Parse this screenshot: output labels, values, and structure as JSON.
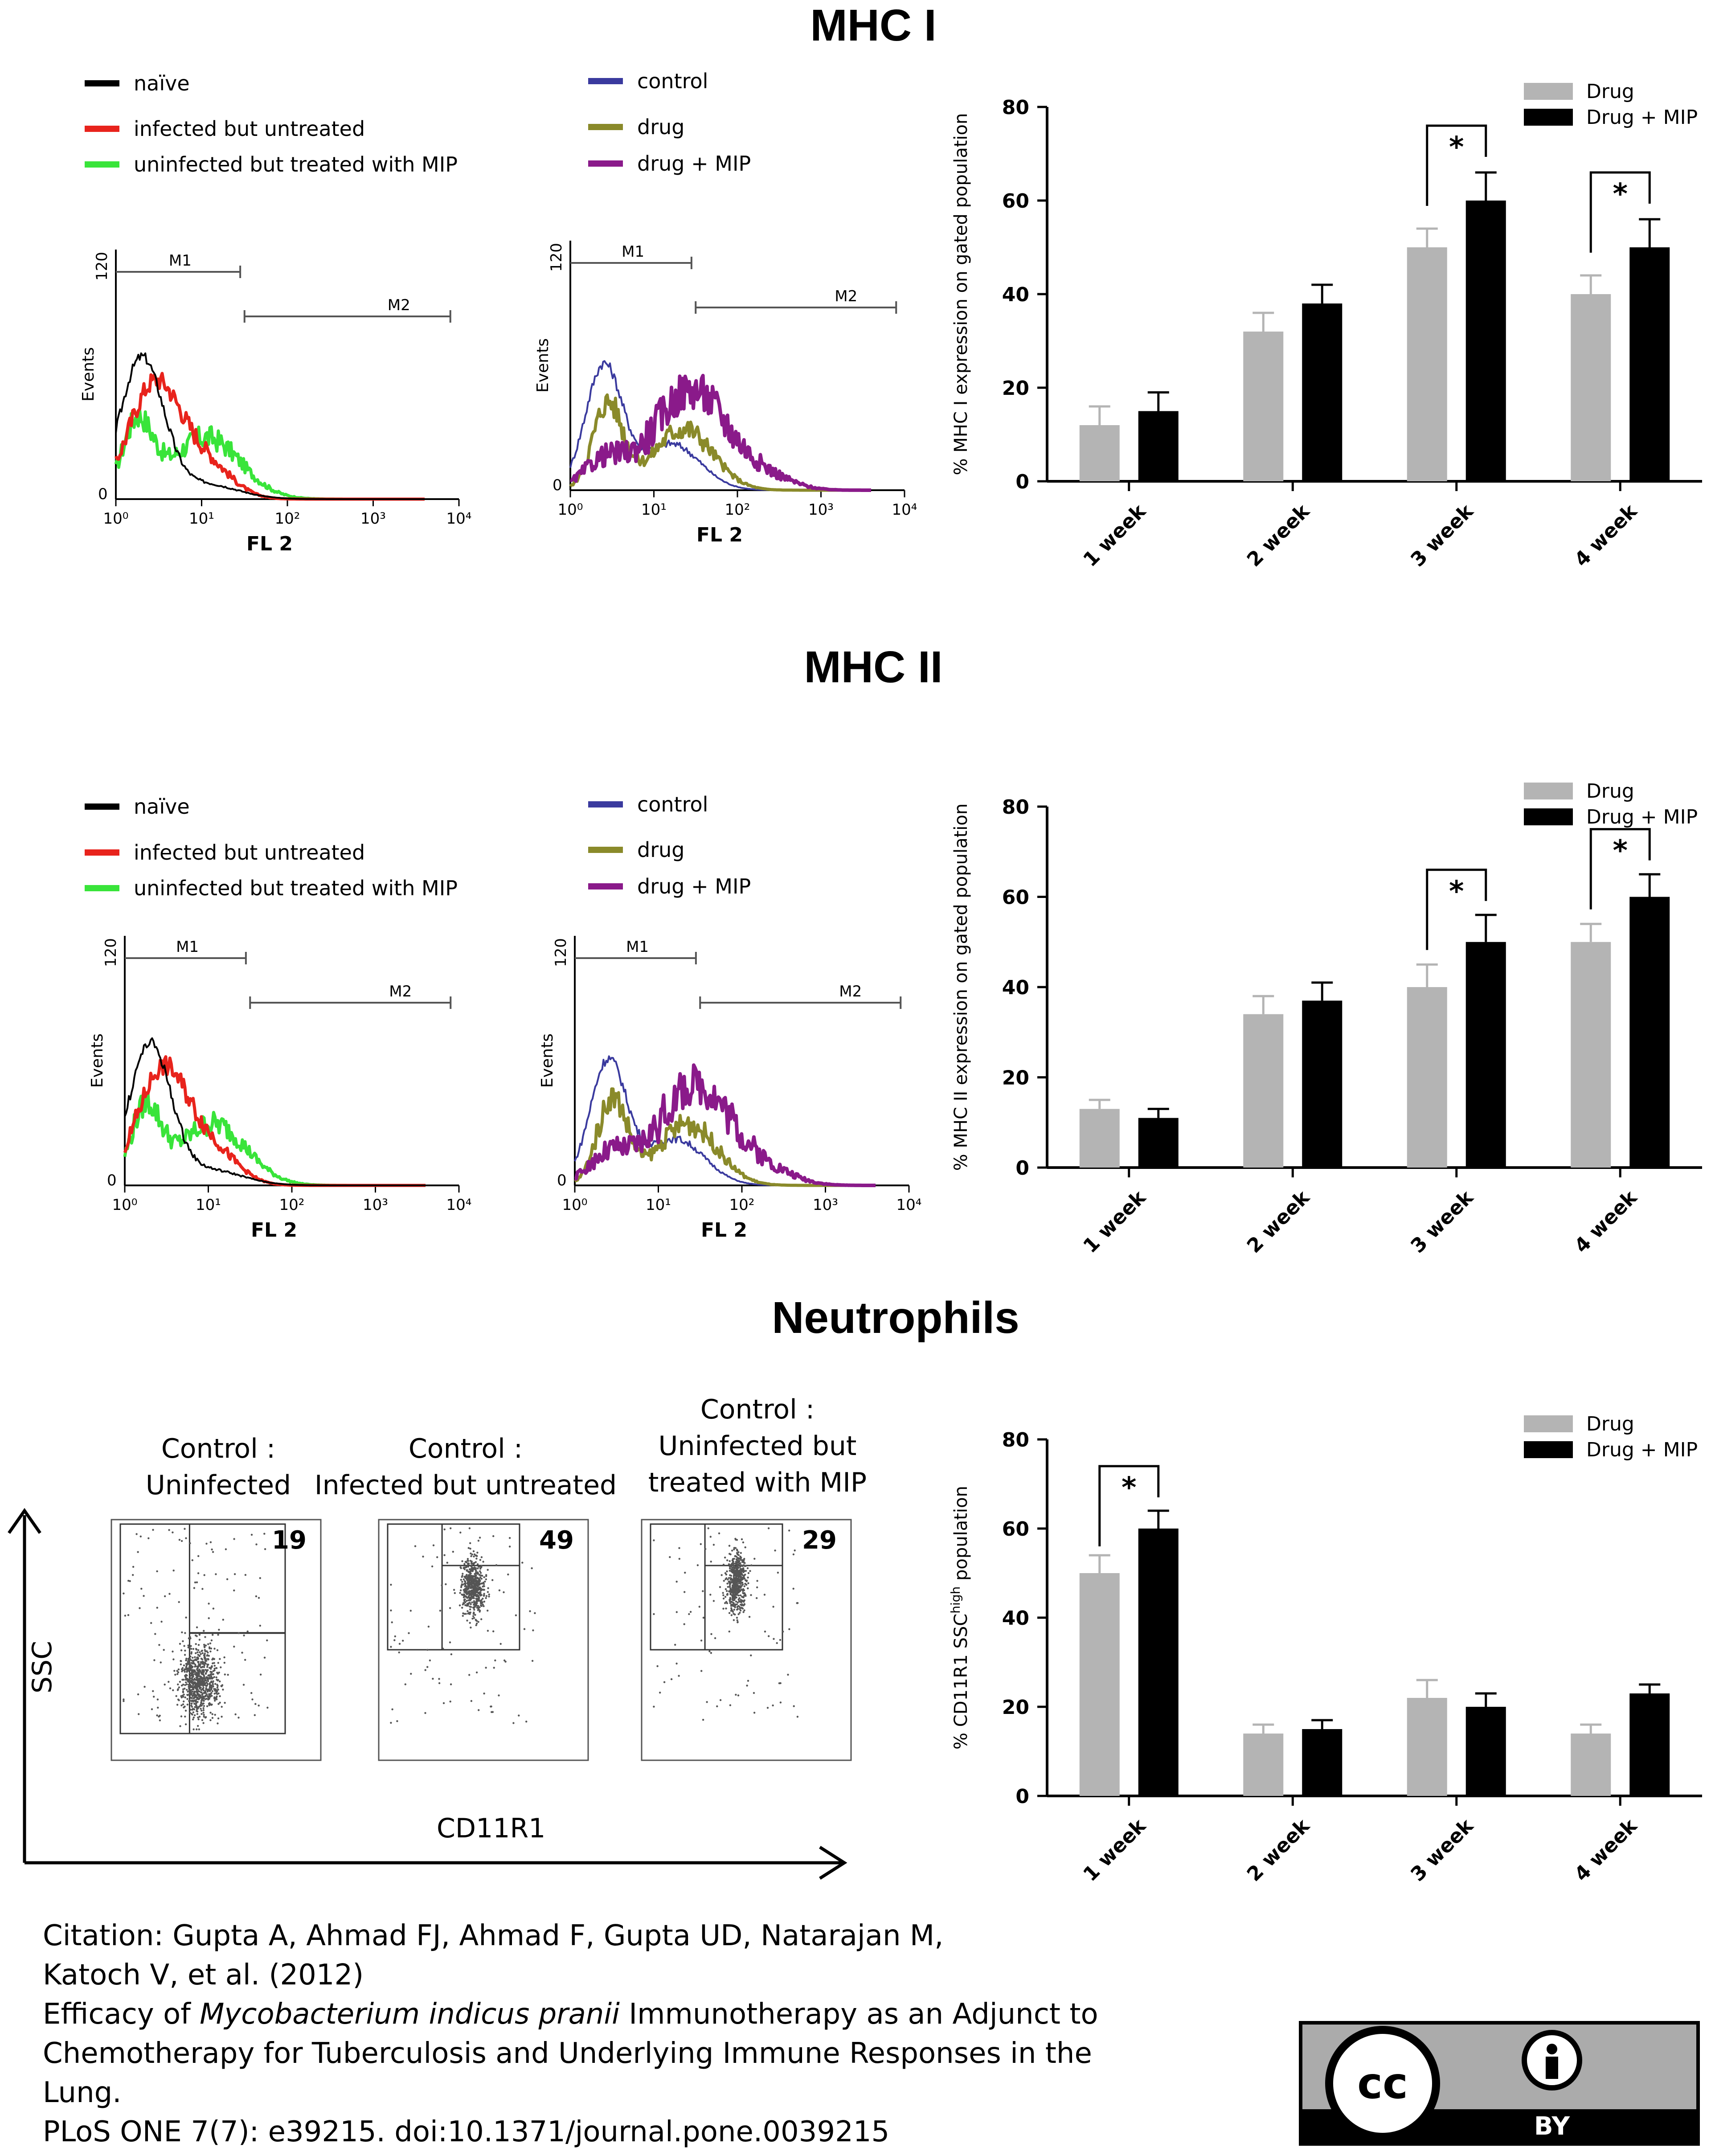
{
  "titles": {
    "mhc1": "MHC I",
    "mhc2": "MHC II",
    "neutrophils": "Neutrophils"
  },
  "legends": {
    "left": [
      {
        "label": "naïve",
        "color": "#000000"
      },
      {
        "label": "infected but untreated",
        "color": "#e8231c"
      },
      {
        "label": "uninfected but treated with MIP",
        "color": "#39e43a"
      }
    ],
    "right": [
      {
        "label": "control",
        "color": "#3a3a9e"
      },
      {
        "label": "drug",
        "color": "#8a8a2a"
      },
      {
        "label": "drug + MIP",
        "color": "#8a1a8a"
      }
    ]
  },
  "histogram_labels": {
    "ymax": "120",
    "ymin": "0",
    "ylabel": "Events",
    "xlabel": "FL 2",
    "ticks": [
      "10⁰",
      "10¹",
      "10²",
      "10³",
      "10⁴"
    ],
    "m1": "M1",
    "m2": "M2"
  },
  "neutrophil_panels": {
    "labels": [
      [
        "Control :",
        "Uninfected"
      ],
      [
        "Control :",
        "Infected but untreated"
      ],
      [
        "Control :",
        "Uninfected but",
        "treated  with MIP"
      ]
    ],
    "counts": [
      "19",
      "49",
      "29"
    ],
    "axis_y": "SSC",
    "axis_x": "CD11R1"
  },
  "chart_data": [
    {
      "type": "bar",
      "ylabel": "% MHC I expression on gated population",
      "categories": [
        "1 week",
        "2 week",
        "3 week",
        "4 week"
      ],
      "ylim": [
        0,
        80
      ],
      "yticks": [
        0,
        20,
        40,
        60,
        80
      ],
      "series": [
        {
          "name": "Drug",
          "color": "#b4b4b4",
          "values": [
            12,
            32,
            50,
            40
          ],
          "errors": [
            4,
            4,
            4,
            4
          ]
        },
        {
          "name": "Drug + MIP",
          "color": "#000000",
          "values": [
            15,
            38,
            60,
            50
          ],
          "errors": [
            4,
            4,
            6,
            6
          ]
        }
      ],
      "significance": [
        {
          "category": 2,
          "label": "*"
        },
        {
          "category": 3,
          "label": "*"
        }
      ],
      "legend": "top-right"
    },
    {
      "type": "bar",
      "ylabel": "% MHC II expression on gated population",
      "categories": [
        "1 week",
        "2 week",
        "3 week",
        "4 week"
      ],
      "ylim": [
        0,
        80
      ],
      "yticks": [
        0,
        20,
        40,
        60,
        80
      ],
      "series": [
        {
          "name": "Drug",
          "color": "#b4b4b4",
          "values": [
            13,
            34,
            40,
            50
          ],
          "errors": [
            2,
            4,
            5,
            4
          ]
        },
        {
          "name": "Drug + MIP",
          "color": "#000000",
          "values": [
            11,
            37,
            50,
            60
          ],
          "errors": [
            2,
            4,
            6,
            5
          ]
        }
      ],
      "significance": [
        {
          "category": 2,
          "label": "*"
        },
        {
          "category": 3,
          "label": "*"
        }
      ],
      "legend": "top-right"
    },
    {
      "type": "bar",
      "ylabel": "% CD11R1 SSC",
      "ylabel_sup": "high",
      "ylabel_suffix": " population",
      "categories": [
        "1 week",
        "2 week",
        "3 week",
        "4 week"
      ],
      "ylim": [
        0,
        80
      ],
      "yticks": [
        0,
        20,
        40,
        60,
        80
      ],
      "series": [
        {
          "name": "Drug",
          "color": "#b4b4b4",
          "values": [
            50,
            14,
            22,
            14
          ],
          "errors": [
            4,
            2,
            4,
            2
          ]
        },
        {
          "name": "Drug + MIP",
          "color": "#000000",
          "values": [
            60,
            15,
            20,
            23
          ],
          "errors": [
            4,
            2,
            3,
            2
          ]
        }
      ],
      "significance": [
        {
          "category": 0,
          "label": "*"
        }
      ],
      "legend": "top-right"
    }
  ],
  "citation": {
    "line1": "Citation: Gupta A, Ahmad FJ, Ahmad F, Gupta UD, Natarajan M,",
    "line2": "Katoch V, et al. (2012)",
    "line3_pre": "Efficacy of ",
    "line3_italic": "Mycobacterium indicus pranii",
    "line3_post": " Immunotherapy as an Adjunct to",
    "line4": "Chemotherapy for Tuberculosis and Underlying Immune Responses in the",
    "line5": "Lung.",
    "line6": "PLoS ONE 7(7): e39215. doi:10.1371/journal.pone.0039215"
  },
  "license": {
    "cc": "cc",
    "by": "BY"
  }
}
